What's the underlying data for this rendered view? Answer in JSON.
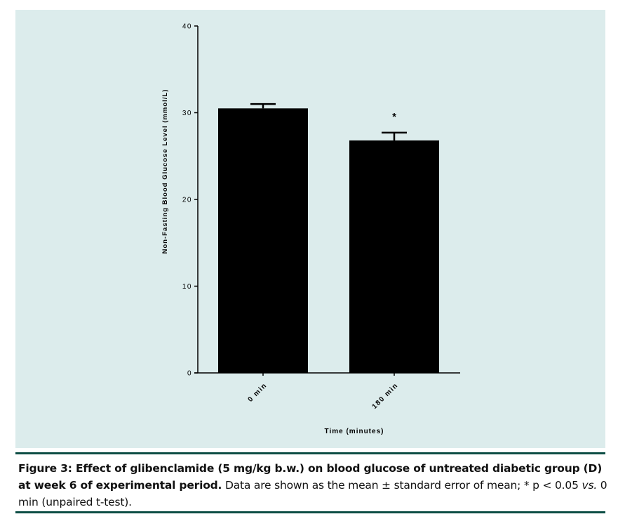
{
  "chart_data": {
    "type": "bar",
    "categories": [
      "0 min",
      "180 min"
    ],
    "values": [
      30.5,
      26.8
    ],
    "errors": [
      0.5,
      0.9
    ],
    "annotations": [
      "",
      "*"
    ],
    "xlabel": "Time (minutes)",
    "ylabel": "Non-Fasting Blood Glucose Level (mmol/L)",
    "ylim": [
      0,
      40
    ],
    "yticks": [
      0,
      10,
      20,
      30,
      40
    ],
    "grid": false,
    "bar_color": "#000000"
  },
  "caption": {
    "bold_part": "Figure 3: Effect of glibenclamide (5 mg/kg b.w.) on blood glucose of untreated diabetic group (D) at week 6 of experimental period.",
    "text_part1": " Data are shown as the mean ± standard error of mean; * p < 0.05 ",
    "italic_part": "vs.",
    "text_part2": " 0 min (unpaired t-test)."
  },
  "colors": {
    "panel_background": "#dcecec",
    "rule": "#0d4e45"
  }
}
